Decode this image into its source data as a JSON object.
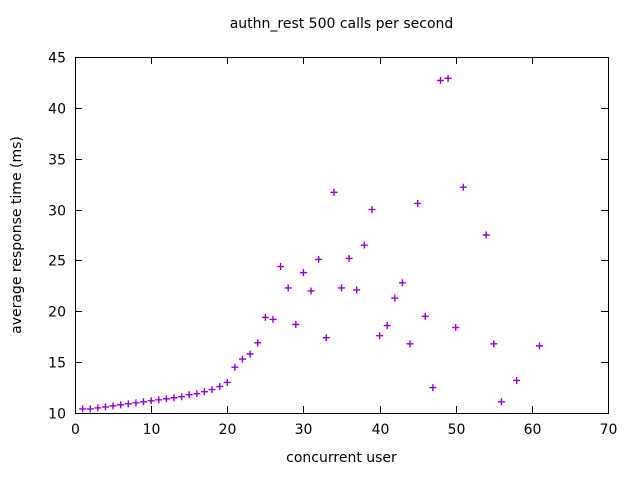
{
  "chart_data": {
    "type": "scatter",
    "title": "authn_rest 500 calls per second",
    "xlabel": "concurrent user",
    "ylabel": "average response time (ms)",
    "xlim": [
      0,
      70
    ],
    "ylim": [
      10,
      45
    ],
    "xticks": [
      0,
      10,
      20,
      30,
      40,
      50,
      60,
      70
    ],
    "yticks": [
      10,
      15,
      20,
      25,
      30,
      35,
      40,
      45
    ],
    "grid": false,
    "legend": null,
    "marker": "plus",
    "marker_color": "#9400D3",
    "axis_color": "#000000",
    "background_color": "#ffffff",
    "series": [
      {
        "name": "authn_rest",
        "points": [
          [
            1,
            10.4
          ],
          [
            2,
            10.4
          ],
          [
            3,
            10.5
          ],
          [
            4,
            10.6
          ],
          [
            5,
            10.7
          ],
          [
            6,
            10.8
          ],
          [
            7,
            10.9
          ],
          [
            8,
            11.0
          ],
          [
            9,
            11.1
          ],
          [
            10,
            11.2
          ],
          [
            11,
            11.3
          ],
          [
            12,
            11.4
          ],
          [
            13,
            11.5
          ],
          [
            14,
            11.6
          ],
          [
            15,
            11.8
          ],
          [
            16,
            11.9
          ],
          [
            17,
            12.1
          ],
          [
            18,
            12.3
          ],
          [
            19,
            12.6
          ],
          [
            20,
            13.0
          ],
          [
            21,
            14.5
          ],
          [
            22,
            15.3
          ],
          [
            23,
            15.8
          ],
          [
            24,
            16.9
          ],
          [
            25,
            19.4
          ],
          [
            26,
            19.2
          ],
          [
            27,
            24.4
          ],
          [
            28,
            22.3
          ],
          [
            29,
            18.7
          ],
          [
            30,
            23.8
          ],
          [
            31,
            22.0
          ],
          [
            32,
            25.1
          ],
          [
            33,
            17.4
          ],
          [
            34,
            31.7
          ],
          [
            35,
            22.3
          ],
          [
            36,
            25.2
          ],
          [
            37,
            22.1
          ],
          [
            38,
            26.5
          ],
          [
            39,
            30.0
          ],
          [
            40,
            17.6
          ],
          [
            41,
            18.6
          ],
          [
            42,
            21.3
          ],
          [
            43,
            22.8
          ],
          [
            44,
            16.8
          ],
          [
            45,
            30.6
          ],
          [
            46,
            19.5
          ],
          [
            47,
            12.5
          ],
          [
            48,
            42.7
          ],
          [
            49,
            42.9
          ],
          [
            50,
            18.4
          ],
          [
            51,
            32.2
          ],
          [
            54,
            27.5
          ],
          [
            55,
            16.8
          ],
          [
            56,
            11.1
          ],
          [
            58,
            13.2
          ],
          [
            61,
            16.6
          ]
        ]
      }
    ]
  }
}
